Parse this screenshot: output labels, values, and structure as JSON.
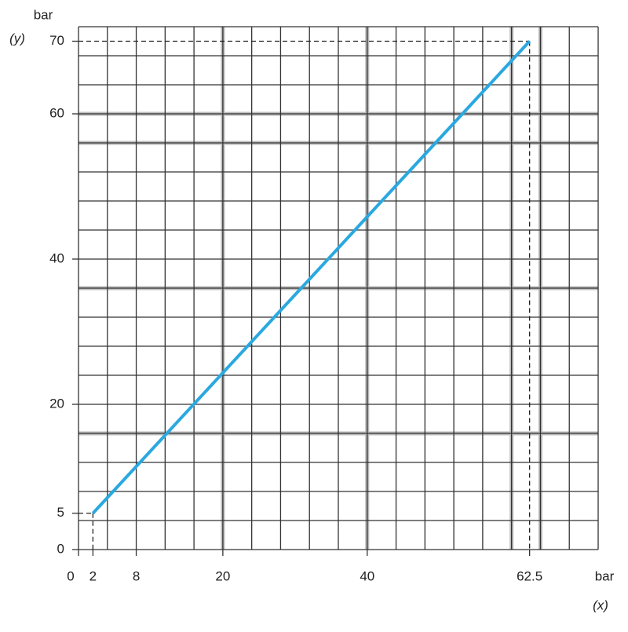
{
  "chart_data": {
    "type": "line",
    "x_label": "bar",
    "x_label_symbol": "(x)",
    "y_label": "bar",
    "y_label_symbol": "(y)",
    "x": [
      2,
      62.5
    ],
    "series": [
      {
        "color": "#2aa8e0",
        "values": [
          5,
          70
        ]
      }
    ],
    "xlim": [
      0,
      72
    ],
    "ylim": [
      0,
      72
    ],
    "xticks": [
      0,
      2,
      8,
      20,
      40,
      62.5
    ],
    "yticks": [
      0,
      5,
      20,
      40,
      60,
      70
    ],
    "xgrid": [
      0,
      4,
      8,
      12,
      16,
      20,
      24,
      28,
      32,
      36,
      40,
      44,
      48,
      52,
      56,
      60,
      64,
      68,
      72
    ],
    "ygrid": [
      0,
      4,
      8,
      12,
      16,
      20,
      24,
      28,
      32,
      36,
      40,
      44,
      48,
      52,
      56,
      60,
      64,
      68,
      72
    ],
    "xgrid_bold": [
      20,
      40,
      60,
      64
    ],
    "ygrid_bold": [
      16,
      36,
      56,
      60
    ],
    "grid_color": "#333333",
    "grid_bold_color": "#bbbbbb",
    "guide_lines": "dashed"
  }
}
